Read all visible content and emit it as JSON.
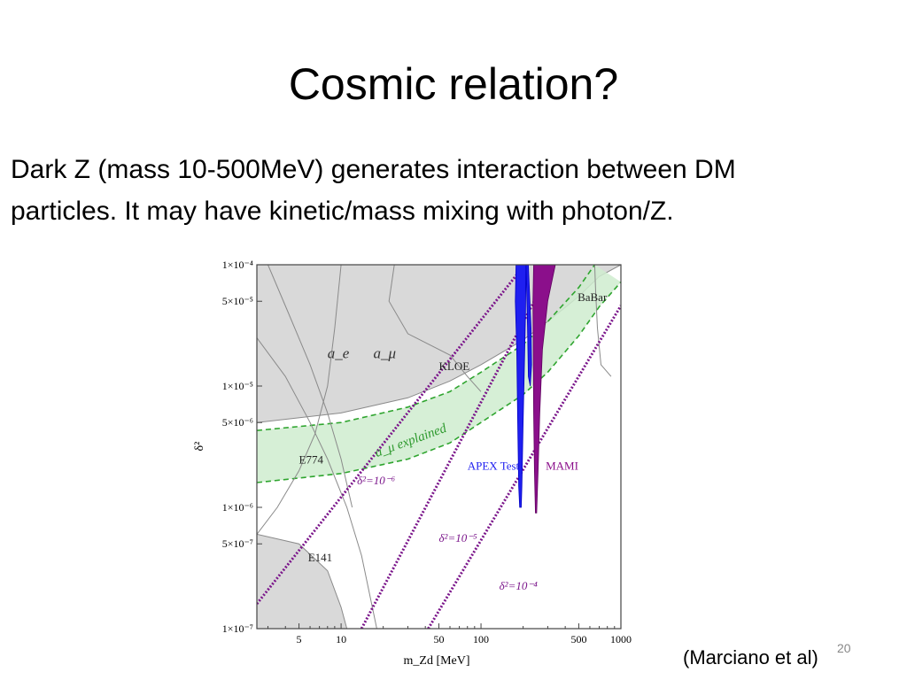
{
  "slide": {
    "title": "Cosmic relation?",
    "body": [
      "Dark Z (mass 10-500MeV)  generates interaction between DM",
      "particles. It may have kinetic/mass mixing with photon/Z."
    ],
    "citation": "(Marciano et al)",
    "page_number": "20"
  },
  "chart_data": {
    "type": "area",
    "xscale": "log",
    "yscale": "log",
    "xlim": [
      2.5,
      1000
    ],
    "ylim": [
      1e-07,
      0.0001
    ],
    "xlabel": "m_Zd [MeV]",
    "ylabel": "δ²",
    "x_ticks": [
      {
        "value": 5,
        "label": "5"
      },
      {
        "value": 10,
        "label": "10"
      },
      {
        "value": 50,
        "label": "50"
      },
      {
        "value": 100,
        "label": "100"
      },
      {
        "value": 500,
        "label": "500"
      },
      {
        "value": 1000,
        "label": "1000"
      }
    ],
    "y_ticks": [
      {
        "value": 0.0001,
        "label": "1×10⁻⁴"
      },
      {
        "value": 5e-05,
        "label": "5×10⁻⁵"
      },
      {
        "value": 1e-05,
        "label": "1×10⁻⁵"
      },
      {
        "value": 5e-06,
        "label": "5×10⁻⁶"
      },
      {
        "value": 1e-06,
        "label": "1×10⁻⁶"
      },
      {
        "value": 5e-07,
        "label": "5×10⁻⁷"
      },
      {
        "value": 1e-07,
        "label": "1×10⁻⁷"
      }
    ],
    "excluded_upper": [
      [
        2.5,
        5e-06
      ],
      [
        10,
        6e-06
      ],
      [
        30,
        8e-06
      ],
      [
        60,
        1.1e-05
      ],
      [
        100,
        1.5e-05
      ],
      [
        200,
        2.4e-05
      ],
      [
        300,
        3.4e-05
      ],
      [
        500,
        5.5e-05
      ],
      [
        700,
        8e-05
      ],
      [
        1000,
        0.0001
      ]
    ],
    "excluded_lower": [
      [
        2.5,
        6e-07
      ],
      [
        5,
        5e-07
      ],
      [
        8,
        3e-07
      ],
      [
        10,
        1.5e-07
      ],
      [
        11,
        1e-07
      ]
    ],
    "explained_band": {
      "upper": [
        [
          2.5,
          4.3e-06
        ],
        [
          10,
          5e-06
        ],
        [
          30,
          6.7e-06
        ],
        [
          60,
          9e-06
        ],
        [
          100,
          1.3e-05
        ],
        [
          200,
          2.2e-05
        ],
        [
          300,
          3.4e-05
        ],
        [
          500,
          6.5e-05
        ],
        [
          650,
          0.0001
        ]
      ],
      "lower": [
        [
          2.5,
          1.6e-06
        ],
        [
          10,
          1.9e-06
        ],
        [
          30,
          2.5e-06
        ],
        [
          60,
          3.4e-06
        ],
        [
          100,
          5e-06
        ],
        [
          200,
          8.5e-06
        ],
        [
          300,
          1.3e-05
        ],
        [
          500,
          2.6e-05
        ],
        [
          700,
          4.5e-05
        ],
        [
          1000,
          7.2e-05
        ]
      ]
    },
    "delta_lines": [
      {
        "label": "δ²=10⁻⁶",
        "points": [
          [
            2.5,
            1.6e-07
          ],
          [
            205,
            0.0001
          ]
        ],
        "label_at": [
          13,
          1.55e-06
        ]
      },
      {
        "label": "δ²=10⁻⁵",
        "points": [
          [
            14,
            1e-07
          ],
          [
            330,
            0.0001
          ]
        ],
        "label_at": [
          50,
          5.2e-07
        ]
      },
      {
        "label": "δ²=10⁻⁴",
        "points": [
          [
            42,
            1e-07
          ],
          [
            1000,
            4.6e-05
          ]
        ],
        "label_at": [
          135,
          2.1e-07
        ]
      }
    ],
    "apex": {
      "label": "APEX Test",
      "color": "#1f1ff0",
      "regions": [
        [
          [
            178,
            0.0001
          ],
          [
            176,
            5e-05
          ],
          [
            180,
            2e-05
          ],
          [
            183,
            5e-06
          ],
          [
            186,
            1.5e-06
          ],
          [
            189,
            1e-06
          ],
          [
            194,
            1e-06
          ],
          [
            196,
            1.5e-06
          ],
          [
            200,
            5e-06
          ],
          [
            205,
            1.8e-05
          ],
          [
            208,
            4e-05
          ],
          [
            210,
            0.0001
          ]
        ],
        [
          [
            210,
            0.0001
          ],
          [
            212,
            6e-05
          ],
          [
            215,
            3e-05
          ],
          [
            218,
            1.2e-05
          ],
          [
            225,
            1e-05
          ],
          [
            230,
            1.5e-05
          ],
          [
            228,
            3e-05
          ],
          [
            222,
            6e-05
          ],
          [
            218,
            0.0001
          ]
        ]
      ]
    },
    "mami": {
      "label": "MAMI",
      "color": "#8b0f8b",
      "region": [
        [
          238,
          0.0001
        ],
        [
          235,
          5e-05
        ],
        [
          236,
          2e-05
        ],
        [
          238,
          6e-06
        ],
        [
          241,
          2e-06
        ],
        [
          245,
          9e-07
        ],
        [
          250,
          9e-07
        ],
        [
          256,
          2e-06
        ],
        [
          263,
          6e-06
        ],
        [
          275,
          2e-05
        ],
        [
          300,
          5e-05
        ],
        [
          340,
          0.0001
        ]
      ]
    },
    "annotations": [
      {
        "text": "a_e",
        "at": [
          8,
          1.7e-05
        ]
      },
      {
        "text": "a_μ",
        "at": [
          17,
          1.7e-05
        ]
      },
      {
        "text": "KLOE",
        "at": [
          50,
          1.35e-05
        ]
      },
      {
        "text": "BaBar",
        "at": [
          490,
          5e-05
        ]
      },
      {
        "text": "E774",
        "at": [
          5,
          2.3e-06
        ]
      },
      {
        "text": "E141",
        "at": [
          5.8,
          3.6e-07
        ]
      },
      {
        "text": "a_μ explained",
        "at": [
          18,
          2.6e-06
        ]
      }
    ]
  }
}
